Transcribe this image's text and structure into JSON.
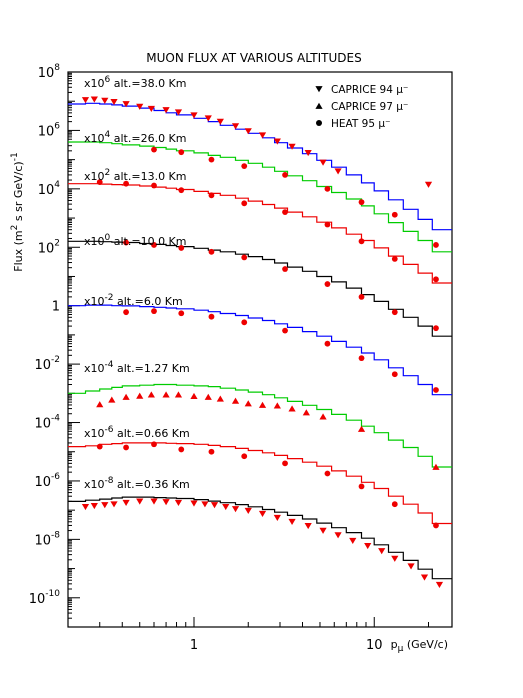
{
  "chart_data": {
    "type": "line",
    "title": "MUON FLUX AT VARIOUS ALTITUDES",
    "xlabel": "p (GeV/c)",
    "xlabel_main": "p",
    "xlabel_sub": "μ",
    "xlabel_unit": "(GeV/c)",
    "ylabel": "Flux (m² s sr GeV/c)⁻¹",
    "ylabel_main": "Flux (m",
    "ylabel_tail": " s sr GeV/c)",
    "xscale": "log",
    "yscale": "log",
    "xlim": [
      0.2,
      27
    ],
    "ylim": [
      1e-11,
      100000000.0
    ],
    "x_ticks": [
      {
        "v": 1,
        "label": "1"
      },
      {
        "v": 10,
        "label": "10"
      }
    ],
    "y_ticks": [
      {
        "v": 100000000.0,
        "label": "10",
        "exp": "8"
      },
      {
        "v": 1000000.0,
        "label": "10",
        "exp": "6"
      },
      {
        "v": 10000.0,
        "label": "10",
        "exp": "4"
      },
      {
        "v": 100.0,
        "label": "10",
        "exp": "2"
      },
      {
        "v": 1,
        "label": "1",
        "exp": ""
      },
      {
        "v": 0.01,
        "label": "10",
        "exp": "-2"
      },
      {
        "v": 0.0001,
        "label": "10",
        "exp": "-4"
      },
      {
        "v": 1e-06,
        "label": "10",
        "exp": "-6"
      },
      {
        "v": 1e-08,
        "label": "10",
        "exp": "-8"
      },
      {
        "v": 1e-10,
        "label": "10",
        "exp": "-10"
      }
    ],
    "legend_position": "top-right",
    "legend": [
      {
        "marker": "triangle-down",
        "label": "CAPRICE 94 μ⁻"
      },
      {
        "marker": "triangle-up",
        "label": "CAPRICE 97 μ⁻"
      },
      {
        "marker": "circle",
        "label": "HEAT 95 μ⁻"
      }
    ],
    "x_bins": [
      0.2,
      0.25,
      0.3,
      0.35,
      0.4,
      0.5,
      0.6,
      0.7,
      0.8,
      1.0,
      1.2,
      1.4,
      1.7,
      2.0,
      2.4,
      2.8,
      3.3,
      4.0,
      4.8,
      5.8,
      7.0,
      8.5,
      10,
      12,
      14.5,
      17.5,
      21,
      27
    ],
    "curves": [
      {
        "multiplier": "x10",
        "exp": "6",
        "altitude": "alt.=38.0 Km",
        "color": "#0000ff",
        "y": [
          8000000.0,
          8500000.0,
          8000000.0,
          7500000.0,
          6800000.0,
          5800000.0,
          4800000.0,
          4000000.0,
          3400000.0,
          2600000.0,
          2000000.0,
          1500000.0,
          1100000.0,
          800000.0,
          560000.0,
          380000.0,
          250000.0,
          160000.0,
          95000.0,
          55000.0,
          30000.0,
          16000.0,
          8500.0,
          4200.0,
          2000.0,
          900.0,
          400.0
        ]
      },
      {
        "multiplier": "x10",
        "exp": "4",
        "altitude": "alt.=26.0 Km",
        "color": "#00cc00",
        "y": [
          400000.0,
          400000.0,
          380000.0,
          350000.0,
          320000.0,
          290000.0,
          260000.0,
          230000.0,
          200000.0,
          170000.0,
          140000.0,
          120000.0,
          95000.0,
          75000.0,
          55000.0,
          40000.0,
          28000.0,
          19000.0,
          12000.0,
          7500.0,
          4500.0,
          2600.0,
          1400.0,
          700.0,
          350.0,
          170.0,
          70.0
        ]
      },
      {
        "multiplier": "x10",
        "exp": "2",
        "altitude": "alt.=13.0 Km",
        "color": "#ee0000",
        "y": [
          15000.0,
          15000.0,
          14500.0,
          14000.0,
          13500.0,
          12500.0,
          11500.0,
          10500.0,
          9500.0,
          8200.0,
          7000.0,
          6000.0,
          4800.0,
          3800.0,
          2900.0,
          2200.0,
          1600.0,
          1100.0,
          720.0,
          460.0,
          280.0,
          170.0,
          95.0,
          50.0,
          26.0,
          13.0,
          6.0
        ]
      },
      {
        "multiplier": "x10",
        "exp": "0",
        "altitude": "alt.=10.0 Km",
        "color": "#000000",
        "y": [
          160.0,
          160.0,
          155.0,
          150.0,
          145.0,
          135.0,
          125.0,
          115.0,
          105.0,
          92.0,
          80.0,
          70.0,
          58.0,
          48.0,
          38.0,
          29.0,
          21.0,
          15.0,
          10.0,
          6.5,
          4.0,
          2.4,
          1.4,
          0.75,
          0.4,
          0.2,
          0.09
        ]
      },
      {
        "multiplier": "x10",
        "exp": "-2",
        "altitude": "alt.=6.0 Km",
        "color": "#0000ff",
        "y": [
          1.0,
          1.05,
          1.05,
          1.0,
          0.98,
          0.93,
          0.88,
          0.83,
          0.78,
          0.7,
          0.62,
          0.54,
          0.46,
          0.38,
          0.31,
          0.24,
          0.18,
          0.13,
          0.09,
          0.06,
          0.038,
          0.024,
          0.014,
          0.0075,
          0.004,
          0.002,
          0.0009
        ]
      },
      {
        "multiplier": "x10",
        "exp": "-4",
        "altitude": "alt.=1.27 Km",
        "color": "#00cc00",
        "y": [
          0.001,
          0.0012,
          0.0014,
          0.0016,
          0.0018,
          0.0019,
          0.002,
          0.002,
          0.0019,
          0.0018,
          0.0017,
          0.0015,
          0.0013,
          0.0011,
          0.0009,
          0.0007,
          0.00053,
          0.00039,
          0.00028,
          0.00019,
          0.00012,
          7.5e-05,
          4.5e-05,
          2.5e-05,
          1.4e-05,
          7e-06,
          3e-06
        ]
      },
      {
        "multiplier": "x10",
        "exp": "-6",
        "altitude": "alt.=0.66 Km",
        "color": "#ee0000",
        "y": [
          1.5e-05,
          1.6e-05,
          1.8e-05,
          1.9e-05,
          2e-05,
          2e-05,
          2e-05,
          1.95e-05,
          1.9e-05,
          1.8e-05,
          1.65e-05,
          1.5e-05,
          1.3e-05,
          1.1e-05,
          9.2e-06,
          7.5e-06,
          5.8e-06,
          4.4e-06,
          3.2e-06,
          2.2e-06,
          1.45e-06,
          9e-07,
          5.5e-07,
          3e-07,
          1.6e-07,
          8e-08,
          3.5e-08
        ]
      },
      {
        "multiplier": "x10",
        "exp": "-8",
        "altitude": "alt.=0.36 Km",
        "color": "#000000",
        "y": [
          2e-07,
          2.2e-07,
          2.4e-07,
          2.6e-07,
          2.8e-07,
          2.8e-07,
          2.7e-07,
          2.6e-07,
          2.5e-07,
          2.3e-07,
          2.05e-07,
          1.8e-07,
          1.55e-07,
          1.3e-07,
          1.05e-07,
          8.5e-08,
          6.6e-08,
          5e-08,
          3.6e-08,
          2.5e-08,
          1.7e-08,
          1.1e-08,
          6.5e-09,
          3.6e-09,
          1.9e-09,
          9.5e-10,
          4.5e-10
        ]
      }
    ],
    "points": [
      {
        "marker": "triangle-down",
        "color": "#ee0000",
        "x": [
          0.25,
          0.28,
          0.32,
          0.36,
          0.42,
          0.5,
          0.58,
          0.7,
          0.82,
          1.0,
          1.2,
          1.4,
          1.7,
          2.0,
          2.4,
          2.9,
          3.5,
          4.3,
          5.2,
          6.3,
          20
        ],
        "y": [
          11000000.0,
          11500000.0,
          10500000.0,
          9500000.0,
          8000000.0,
          6500000.0,
          5500000.0,
          5000000.0,
          4200000.0,
          3300000.0,
          2600000.0,
          2000000.0,
          1400000.0,
          950000.0,
          680000.0,
          420000.0,
          280000.0,
          170000.0,
          80000.0,
          40000.0,
          14000.0
        ]
      },
      {
        "marker": "circle",
        "color": "#ee0000",
        "x": [
          0.6,
          0.85,
          1.25,
          1.9,
          3.2,
          5.5,
          8.5,
          13,
          22
        ],
        "y": [
          220000.0,
          180000.0,
          100000.0,
          60000.0,
          30000.0,
          10000.0,
          3500.0,
          1300.0,
          120.0
        ]
      },
      {
        "marker": "circle",
        "color": "#ee0000",
        "x": [
          0.3,
          0.42,
          0.6,
          0.85,
          1.25,
          1.9,
          3.2,
          5.5,
          8.5,
          13,
          22
        ],
        "y": [
          17000.0,
          15000.0,
          13000.0,
          9000.0,
          6000.0,
          3200.0,
          1600.0,
          600.0,
          160.0,
          40.0,
          8.0
        ]
      },
      {
        "marker": "circle",
        "color": "#ee0000",
        "x": [
          0.42,
          0.6,
          0.85,
          1.25,
          1.9,
          3.2,
          5.5,
          8.5,
          13,
          22
        ],
        "y": [
          145.0,
          120.0,
          95.0,
          70.0,
          45.0,
          18.0,
          5.5,
          2.0,
          0.6,
          0.17
        ]
      },
      {
        "marker": "circle",
        "color": "#ee0000",
        "x": [
          0.42,
          0.6,
          0.85,
          1.25,
          1.9,
          3.2,
          5.5,
          8.5,
          13,
          22
        ],
        "y": [
          0.6,
          0.65,
          0.55,
          0.42,
          0.27,
          0.14,
          0.05,
          0.016,
          0.0045,
          0.0013
        ]
      },
      {
        "marker": "triangle-up",
        "color": "#ee0000",
        "x": [
          0.3,
          0.35,
          0.42,
          0.5,
          0.58,
          0.7,
          0.82,
          1.0,
          1.2,
          1.4,
          1.7,
          2.0,
          2.4,
          2.9,
          3.5,
          4.2,
          5.2,
          8.5,
          22
        ],
        "y": [
          0.00042,
          0.0006,
          0.00075,
          0.00082,
          0.0009,
          0.0009,
          0.0009,
          0.0008,
          0.00075,
          0.00065,
          0.00055,
          0.00045,
          0.0004,
          0.00038,
          0.0003,
          0.00022,
          0.00016,
          6e-05,
          3e-06
        ]
      },
      {
        "marker": "circle",
        "color": "#ee0000",
        "x": [
          0.3,
          0.42,
          0.6,
          0.85,
          1.25,
          1.9,
          3.2,
          5.5,
          8.5,
          13,
          22
        ],
        "y": [
          1.5e-05,
          1.4e-05,
          1.8e-05,
          1.2e-05,
          1e-05,
          7e-06,
          4e-06,
          1.8e-06,
          6.5e-07,
          1.6e-07,
          3e-08
        ]
      },
      {
        "marker": "triangle-down",
        "color": "#ee0000",
        "x": [
          0.25,
          0.28,
          0.32,
          0.36,
          0.42,
          0.5,
          0.6,
          0.7,
          0.82,
          1.0,
          1.15,
          1.3,
          1.5,
          1.7,
          2.0,
          2.4,
          2.9,
          3.5,
          4.3,
          5.2,
          6.3,
          7.6,
          9.2,
          11,
          13,
          16,
          19,
          23
        ],
        "y": [
          1.3e-07,
          1.4e-07,
          1.5e-07,
          1.6e-07,
          1.8e-07,
          2e-07,
          2e-07,
          1.9e-07,
          1.8e-07,
          1.7e-07,
          1.6e-07,
          1.5e-07,
          1.3e-07,
          1.1e-07,
          9.5e-08,
          7.5e-08,
          5.5e-08,
          4e-08,
          2.9e-08,
          2e-08,
          1.4e-08,
          9e-09,
          6e-09,
          4e-09,
          2.2e-09,
          1.2e-09,
          5e-10,
          2.8e-10
        ]
      }
    ]
  }
}
